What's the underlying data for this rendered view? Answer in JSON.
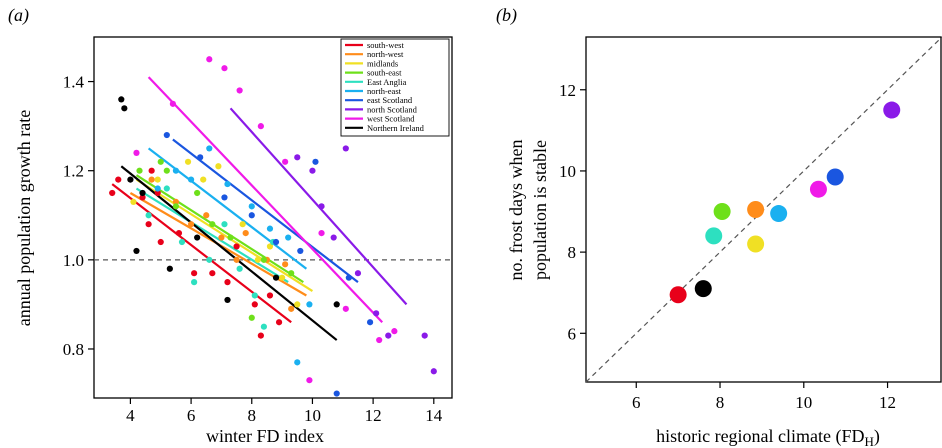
{
  "chart_data": [
    {
      "panel_label": "(a)",
      "type": "scatter",
      "xlabel": "winter FD index",
      "ylabel": "annual population growth rate",
      "xlim": [
        2.8,
        14.6
      ],
      "ylim": [
        0.69,
        1.5
      ],
      "xticks": [
        4,
        6,
        8,
        10,
        12,
        14
      ],
      "yticks": [
        0.8,
        1.0,
        1.2,
        1.4
      ],
      "tick_labels_x": [
        "4",
        "6",
        "8",
        "10",
        "12",
        "14"
      ],
      "tick_labels_y": [
        "0.8",
        "1.0",
        "1.2",
        "1.4"
      ],
      "reference_line_y": 1.0,
      "grid": false,
      "legend_position": "top-right",
      "series": [
        {
          "name": "south-west",
          "color": "#e8001a",
          "line": [
            [
              3.4,
              1.17
            ],
            [
              9.3,
              0.86
            ]
          ],
          "points": [
            [
              3.4,
              1.15
            ],
            [
              3.6,
              1.18
            ],
            [
              4.4,
              1.14
            ],
            [
              4.6,
              1.08
            ],
            [
              4.7,
              1.2
            ],
            [
              4.9,
              1.15
            ],
            [
              5.0,
              1.04
            ],
            [
              5.6,
              1.06
            ],
            [
              6.1,
              0.97
            ],
            [
              6.7,
              0.97
            ],
            [
              7.2,
              0.95
            ],
            [
              7.5,
              1.03
            ],
            [
              8.1,
              0.9
            ],
            [
              8.3,
              0.83
            ],
            [
              8.6,
              0.92
            ],
            [
              8.9,
              0.86
            ]
          ]
        },
        {
          "name": "north-west",
          "color": "#ff8c1a",
          "line": [
            [
              4.0,
              1.15
            ],
            [
              9.8,
              0.92
            ]
          ],
          "points": [
            [
              4.7,
              1.18
            ],
            [
              5.5,
              1.13
            ],
            [
              6.0,
              1.08
            ],
            [
              6.5,
              1.1
            ],
            [
              7.0,
              1.05
            ],
            [
              7.5,
              1.0
            ],
            [
              7.8,
              1.06
            ],
            [
              8.5,
              1.0
            ],
            [
              9.1,
              0.99
            ],
            [
              9.3,
              0.89
            ]
          ]
        },
        {
          "name": "midlands",
          "color": "#f0e024",
          "line": [
            [
              4.2,
              1.18
            ],
            [
              10.0,
              0.93
            ]
          ],
          "points": [
            [
              4.1,
              1.13
            ],
            [
              4.9,
              1.18
            ],
            [
              5.9,
              1.22
            ],
            [
              6.4,
              1.18
            ],
            [
              6.9,
              1.21
            ],
            [
              7.7,
              1.08
            ],
            [
              8.2,
              1.0
            ],
            [
              8.6,
              1.03
            ],
            [
              9.0,
              0.96
            ],
            [
              9.5,
              0.9
            ]
          ]
        },
        {
          "name": "south-east",
          "color": "#6ee01a",
          "line": [
            [
              4.2,
              1.19
            ],
            [
              9.7,
              0.95
            ]
          ],
          "points": [
            [
              4.3,
              1.2
            ],
            [
              5.0,
              1.22
            ],
            [
              5.2,
              1.2
            ],
            [
              5.5,
              1.12
            ],
            [
              6.2,
              1.15
            ],
            [
              6.7,
              1.08
            ],
            [
              7.3,
              1.05
            ],
            [
              8.0,
              0.87
            ],
            [
              8.4,
              1.0
            ],
            [
              9.3,
              0.97
            ]
          ]
        },
        {
          "name": "East Anglia",
          "color": "#2de0c0",
          "line": [
            [
              4.2,
              1.16
            ],
            [
              9.2,
              0.95
            ]
          ],
          "points": [
            [
              4.6,
              1.1
            ],
            [
              5.2,
              1.16
            ],
            [
              5.7,
              1.04
            ],
            [
              6.1,
              0.95
            ],
            [
              6.6,
              1.0
            ],
            [
              7.1,
              1.08
            ],
            [
              7.6,
              0.98
            ],
            [
              8.1,
              0.92
            ],
            [
              8.4,
              0.85
            ],
            [
              8.7,
              1.04
            ]
          ]
        },
        {
          "name": "north-east",
          "color": "#1ab0f0",
          "line": [
            [
              4.6,
              1.25
            ],
            [
              9.8,
              0.98
            ]
          ],
          "points": [
            [
              4.9,
              1.16
            ],
            [
              5.5,
              1.2
            ],
            [
              6.0,
              1.18
            ],
            [
              6.6,
              1.25
            ],
            [
              7.2,
              1.17
            ],
            [
              8.0,
              1.12
            ],
            [
              8.6,
              1.07
            ],
            [
              9.2,
              1.05
            ],
            [
              9.5,
              0.77
            ],
            [
              9.9,
              0.9
            ]
          ]
        },
        {
          "name": "east Scotland",
          "color": "#1a56e0",
          "line": [
            [
              5.4,
              1.27
            ],
            [
              11.5,
              0.95
            ]
          ],
          "points": [
            [
              5.2,
              1.28
            ],
            [
              6.3,
              1.23
            ],
            [
              7.1,
              1.14
            ],
            [
              8.0,
              1.1
            ],
            [
              8.8,
              1.04
            ],
            [
              9.6,
              1.02
            ],
            [
              10.1,
              1.22
            ],
            [
              10.8,
              0.7
            ],
            [
              11.2,
              0.96
            ],
            [
              11.9,
              0.86
            ]
          ]
        },
        {
          "name": "north Scotland",
          "color": "#8a1ae8",
          "line": [
            [
              7.3,
              1.34
            ],
            [
              13.1,
              0.9
            ]
          ],
          "points": [
            [
              9.5,
              1.23
            ],
            [
              10.0,
              1.2
            ],
            [
              10.3,
              1.12
            ],
            [
              10.7,
              1.05
            ],
            [
              11.1,
              1.25
            ],
            [
              11.5,
              0.97
            ],
            [
              12.1,
              0.88
            ],
            [
              12.5,
              0.83
            ],
            [
              13.7,
              0.83
            ],
            [
              14.0,
              0.75
            ]
          ]
        },
        {
          "name": "west Scotland",
          "color": "#f01ae8",
          "line": [
            [
              4.6,
              1.41
            ],
            [
              12.3,
              0.86
            ]
          ],
          "points": [
            [
              4.2,
              1.24
            ],
            [
              5.4,
              1.35
            ],
            [
              6.6,
              1.45
            ],
            [
              7.1,
              1.43
            ],
            [
              7.6,
              1.38
            ],
            [
              8.3,
              1.3
            ],
            [
              9.1,
              1.22
            ],
            [
              9.9,
              0.73
            ],
            [
              10.3,
              1.06
            ],
            [
              11.1,
              0.89
            ],
            [
              12.2,
              0.82
            ],
            [
              12.7,
              0.84
            ]
          ]
        },
        {
          "name": "Northern Ireland",
          "color": "#000000",
          "line": [
            [
              3.7,
              1.21
            ],
            [
              10.8,
              0.82
            ]
          ],
          "points": [
            [
              3.7,
              1.36
            ],
            [
              3.8,
              1.34
            ],
            [
              4.0,
              1.18
            ],
            [
              4.2,
              1.02
            ],
            [
              4.4,
              1.15
            ],
            [
              5.3,
              0.98
            ],
            [
              6.2,
              1.05
            ],
            [
              7.2,
              0.91
            ],
            [
              8.8,
              0.96
            ],
            [
              10.8,
              0.9
            ]
          ]
        }
      ]
    },
    {
      "panel_label": "(b)",
      "type": "scatter",
      "xlabel": "historic regional climate (FD",
      "xlabel_subscript": "H",
      "xlabel_suffix": ")",
      "ylabel_line1": "no. frost days when",
      "ylabel_line2": "population is stable",
      "xlim": [
        4.8,
        13.3
      ],
      "ylim": [
        4.8,
        13.3
      ],
      "xticks": [
        6,
        8,
        10,
        12
      ],
      "yticks": [
        6,
        8,
        10,
        12
      ],
      "tick_labels_x": [
        "6",
        "8",
        "10",
        "12"
      ],
      "tick_labels_y": [
        "6",
        "8",
        "10",
        "12"
      ],
      "reference_line": "y = x",
      "grid": false,
      "points": [
        {
          "x": 7.0,
          "y": 6.95,
          "color": "#e8001a"
        },
        {
          "x": 7.6,
          "y": 7.1,
          "color": "#000000"
        },
        {
          "x": 7.85,
          "y": 8.4,
          "color": "#2de0c0"
        },
        {
          "x": 8.05,
          "y": 9.0,
          "color": "#6ee01a"
        },
        {
          "x": 8.85,
          "y": 8.2,
          "color": "#f0e024"
        },
        {
          "x": 8.85,
          "y": 9.05,
          "color": "#ff8c1a"
        },
        {
          "x": 9.4,
          "y": 8.95,
          "color": "#1ab0f0"
        },
        {
          "x": 10.35,
          "y": 9.55,
          "color": "#f01ae8"
        },
        {
          "x": 10.75,
          "y": 9.85,
          "color": "#1a56e0"
        },
        {
          "x": 12.1,
          "y": 11.5,
          "color": "#8a1ae8"
        }
      ]
    }
  ]
}
